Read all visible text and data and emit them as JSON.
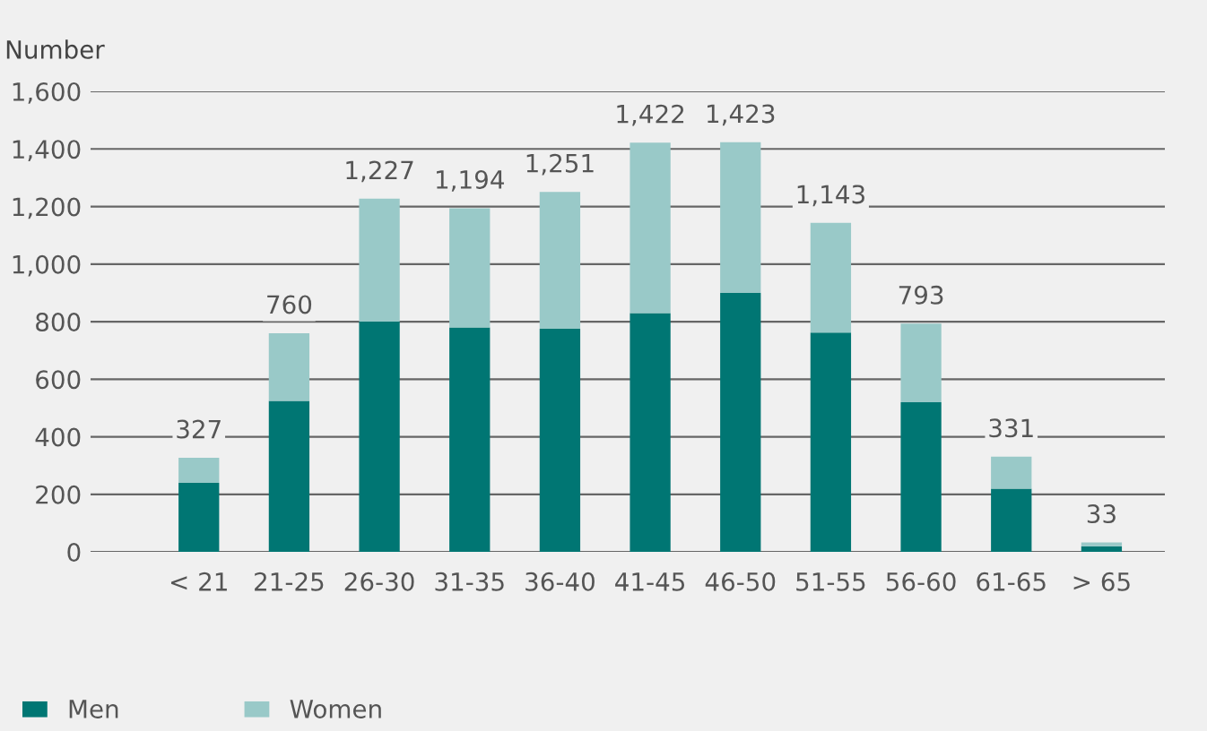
{
  "chart_data": {
    "type": "bar",
    "ylabel": "Number",
    "stacked": true,
    "categories": [
      "< 21",
      "21-25",
      "26-30",
      "31-35",
      "36-40",
      "41-45",
      "46-50",
      "51-55",
      "56-60",
      "61-65",
      "> 65"
    ],
    "series": [
      {
        "name": "Men",
        "color": "#007673",
        "values": [
          240,
          525,
          800,
          780,
          775,
          830,
          900,
          762,
          520,
          220,
          20
        ]
      },
      {
        "name": "Women",
        "color": "#99c9c8",
        "values": [
          87,
          235,
          427,
          414,
          476,
          592,
          523,
          381,
          273,
          111,
          13
        ]
      }
    ],
    "totals": [
      "327",
      "760",
      "1,227",
      "1,194",
      "1,251",
      "1,422",
      "1,423",
      "1,143",
      "793",
      "331",
      "33"
    ],
    "ylim": [
      0,
      1600
    ],
    "yticks": [
      {
        "value": 0,
        "label": "0"
      },
      {
        "value": 200,
        "label": "200"
      },
      {
        "value": 400,
        "label": "400"
      },
      {
        "value": 600,
        "label": "600"
      },
      {
        "value": 800,
        "label": "800"
      },
      {
        "value": 1000,
        "label": "1,000"
      },
      {
        "value": 1200,
        "label": "1,200"
      },
      {
        "value": 1400,
        "label": "1,400"
      },
      {
        "value": 1600,
        "label": "1,600"
      }
    ],
    "grid": "y",
    "legend": "bottom left"
  }
}
